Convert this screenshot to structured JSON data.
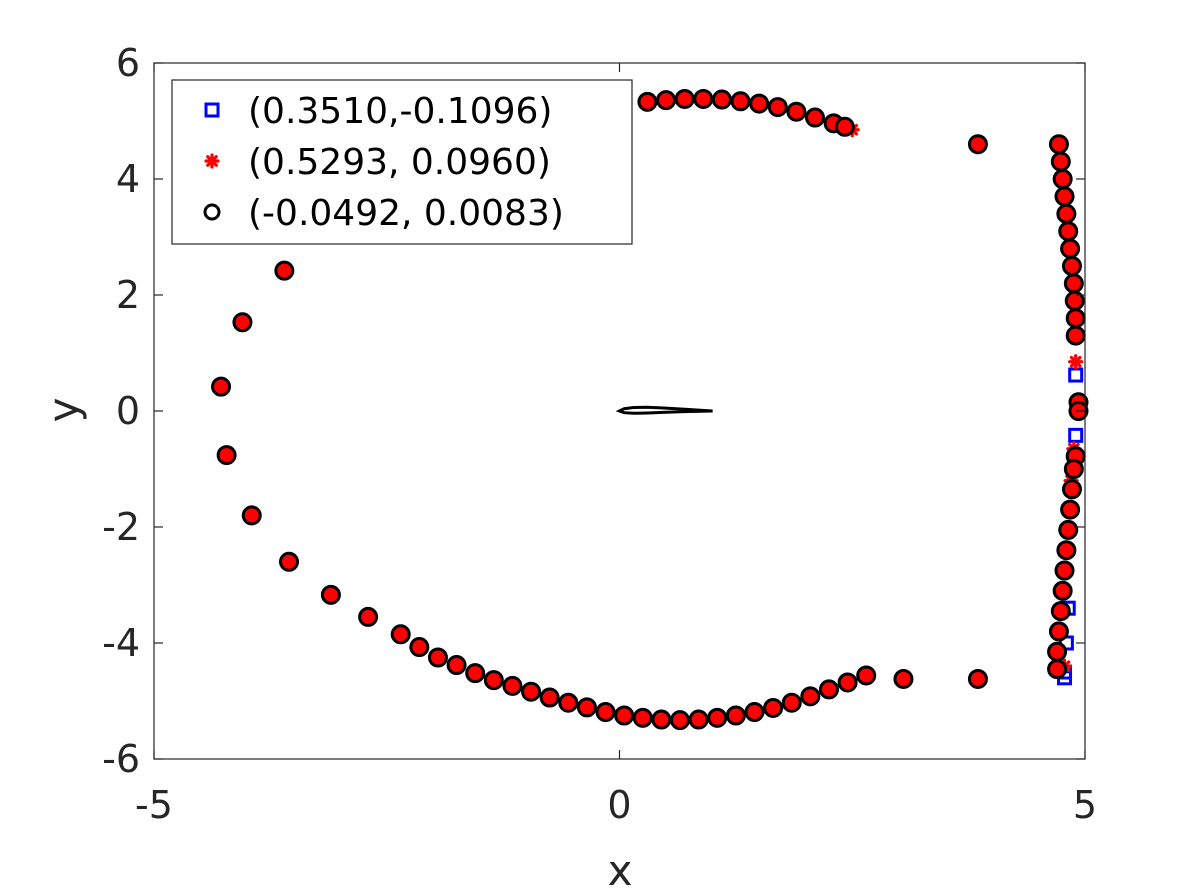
{
  "chart_data": {
    "type": "scatter",
    "title": "",
    "xlabel": "x",
    "ylabel": "y",
    "xlim": [
      -5,
      5
    ],
    "ylim": [
      -6,
      6
    ],
    "xticks": [
      -5,
      0,
      5
    ],
    "xtick_labels": [
      "-5",
      "0",
      "5"
    ],
    "yticks": [
      -6,
      -4,
      -2,
      0,
      2,
      4,
      6
    ],
    "ytick_labels": [
      "-6",
      "-4",
      "-2",
      "0",
      "2",
      "4",
      "6"
    ],
    "grid": false,
    "legend_position": "top-left",
    "colors": {
      "square": "#0000ff",
      "star": "#ff0000",
      "circle_edge": "#000000",
      "circle_fill": "#ff0000",
      "airfoil": "#000000"
    },
    "series": [
      {
        "name": "(0.3510,-0.1096)",
        "marker": "square",
        "color": "#0000ff",
        "points": [
          [
            4.9,
            0.62
          ],
          [
            4.9,
            -0.42
          ],
          [
            4.82,
            -3.4
          ],
          [
            4.8,
            -4.0
          ],
          [
            4.78,
            -4.5
          ],
          [
            4.78,
            -4.6
          ]
        ]
      },
      {
        "name": "(0.5293, 0.0960)",
        "marker": "star",
        "color": "#ff0000",
        "points": [
          [
            2.5,
            4.85
          ],
          [
            4.9,
            0.85
          ],
          [
            4.88,
            -0.65
          ],
          [
            4.85,
            -1.2
          ],
          [
            4.78,
            -4.4
          ]
        ]
      },
      {
        "name": "(-0.0492, 0.0083)",
        "marker": "circle",
        "color": "#000000",
        "points": [
          [
            -4.28,
            0.42
          ],
          [
            -4.22,
            -0.76
          ],
          [
            -3.95,
            -1.8
          ],
          [
            -3.55,
            -2.6
          ],
          [
            -3.1,
            -3.17
          ],
          [
            -2.7,
            -3.55
          ],
          [
            -2.35,
            -3.85
          ],
          [
            -2.15,
            -4.07
          ],
          [
            -1.95,
            -4.25
          ],
          [
            -1.75,
            -4.38
          ],
          [
            -1.55,
            -4.52
          ],
          [
            -1.35,
            -4.64
          ],
          [
            -1.15,
            -4.74
          ],
          [
            -0.95,
            -4.84
          ],
          [
            -0.75,
            -4.94
          ],
          [
            -0.55,
            -5.03
          ],
          [
            -0.35,
            -5.11
          ],
          [
            -0.15,
            -5.19
          ],
          [
            0.05,
            -5.25
          ],
          [
            0.25,
            -5.29
          ],
          [
            0.45,
            -5.32
          ],
          [
            0.65,
            -5.33
          ],
          [
            0.85,
            -5.32
          ],
          [
            1.05,
            -5.29
          ],
          [
            1.25,
            -5.25
          ],
          [
            1.45,
            -5.19
          ],
          [
            1.65,
            -5.12
          ],
          [
            1.85,
            -5.03
          ],
          [
            2.05,
            -4.92
          ],
          [
            2.25,
            -4.8
          ],
          [
            2.45,
            -4.68
          ],
          [
            2.65,
            -4.56
          ],
          [
            3.05,
            -4.62
          ],
          [
            3.85,
            -4.62
          ],
          [
            -3.6,
            2.42
          ],
          [
            -4.05,
            1.53
          ],
          [
            0.3,
            5.33
          ],
          [
            0.5,
            5.36
          ],
          [
            0.7,
            5.38
          ],
          [
            0.9,
            5.38
          ],
          [
            1.1,
            5.37
          ],
          [
            1.3,
            5.34
          ],
          [
            1.5,
            5.3
          ],
          [
            1.7,
            5.24
          ],
          [
            1.9,
            5.16
          ],
          [
            2.1,
            5.06
          ],
          [
            2.3,
            4.96
          ],
          [
            2.42,
            4.9
          ],
          [
            3.85,
            4.6
          ],
          [
            4.72,
            4.6
          ],
          [
            4.74,
            4.3
          ],
          [
            4.76,
            4.0
          ],
          [
            4.78,
            3.7
          ],
          [
            4.8,
            3.4
          ],
          [
            4.82,
            3.1
          ],
          [
            4.84,
            2.8
          ],
          [
            4.86,
            2.5
          ],
          [
            4.88,
            2.2
          ],
          [
            4.89,
            1.9
          ],
          [
            4.9,
            1.6
          ],
          [
            4.9,
            1.3
          ],
          [
            4.93,
            0.15
          ],
          [
            4.93,
            0.0
          ],
          [
            4.9,
            -0.78
          ],
          [
            4.88,
            -1.0
          ],
          [
            4.86,
            -1.35
          ],
          [
            4.84,
            -1.7
          ],
          [
            4.82,
            -2.05
          ],
          [
            4.8,
            -2.4
          ],
          [
            4.78,
            -2.75
          ],
          [
            4.76,
            -3.1
          ],
          [
            4.74,
            -3.45
          ],
          [
            4.72,
            -3.8
          ],
          [
            4.7,
            -4.15
          ],
          [
            4.7,
            -4.45
          ]
        ]
      }
    ],
    "airfoil": {
      "upper": [
        [
          0.0,
          0.0
        ],
        [
          0.05,
          0.04
        ],
        [
          0.15,
          0.06
        ],
        [
          0.3,
          0.065
        ],
        [
          0.5,
          0.05
        ],
        [
          0.7,
          0.03
        ],
        [
          1.0,
          0.0
        ]
      ],
      "lower": [
        [
          1.0,
          0.0
        ],
        [
          0.7,
          -0.01
        ],
        [
          0.5,
          -0.02
        ],
        [
          0.3,
          -0.035
        ],
        [
          0.15,
          -0.04
        ],
        [
          0.05,
          -0.03
        ],
        [
          0.0,
          0.0
        ]
      ]
    }
  }
}
